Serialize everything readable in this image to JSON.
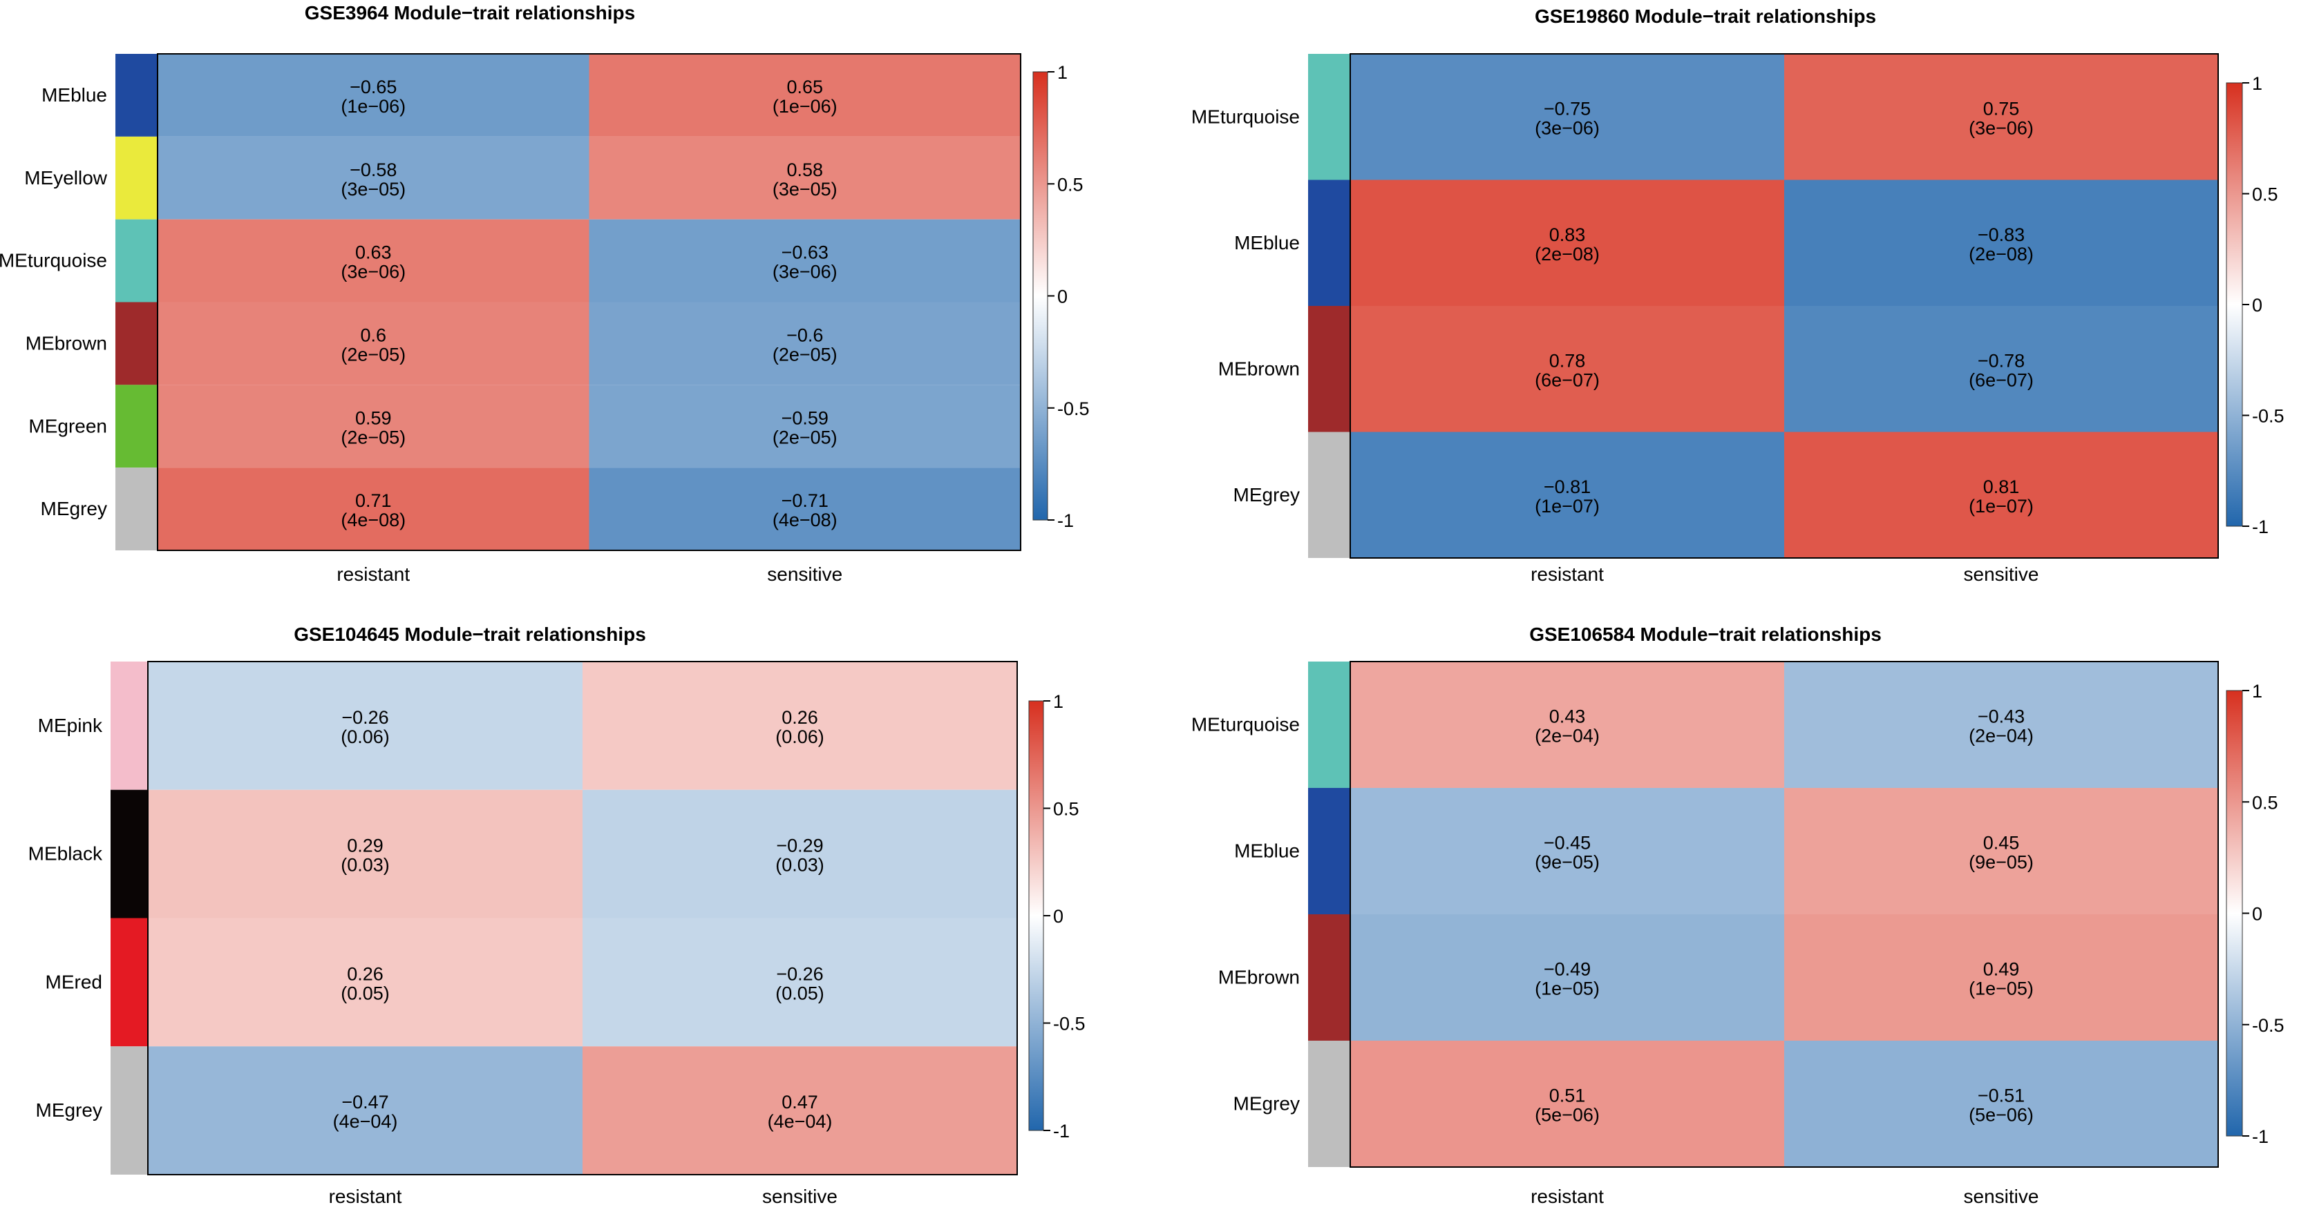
{
  "figure_label": "Module-trait relationship heatmaps for four GEO datasets",
  "colorscale": {
    "low": "#2166AC",
    "mid": "#FFFFFF",
    "high": "#D7301F",
    "ticks": [
      "1",
      "0.5",
      "0",
      "-0.5",
      "-1"
    ]
  },
  "chart_data": [
    {
      "type": "heatmap",
      "title": "GSE3964 Module−trait relationships",
      "columns": [
        "resistant",
        "sensitive"
      ],
      "rows": [
        "MEblue",
        "MEyellow",
        "MEturquoise",
        "MEbrown",
        "MEgreen",
        "MEgrey"
      ],
      "module_colors": [
        "#1F4AA0",
        "#EAEA3C",
        "#5EC2B6",
        "#9E2A2B",
        "#66BB33",
        "#BEBEBE"
      ],
      "values": [
        [
          -0.65,
          0.65
        ],
        [
          -0.58,
          0.58
        ],
        [
          0.63,
          -0.63
        ],
        [
          0.6,
          -0.6
        ],
        [
          0.59,
          -0.59
        ],
        [
          0.71,
          -0.71
        ]
      ],
      "labels": [
        [
          "−0.65",
          "0.65"
        ],
        [
          "−0.58",
          "0.58"
        ],
        [
          "0.63",
          "−0.63"
        ],
        [
          "0.6",
          "−0.6"
        ],
        [
          "0.59",
          "−0.59"
        ],
        [
          "0.71",
          "−0.71"
        ]
      ],
      "pvalues": [
        [
          "(1e−06)",
          "(1e−06)"
        ],
        [
          "(3e−05)",
          "(3e−05)"
        ],
        [
          "(3e−06)",
          "(3e−06)"
        ],
        [
          "(2e−05)",
          "(2e−05)"
        ],
        [
          "(2e−05)",
          "(2e−05)"
        ],
        [
          "(4e−08)",
          "(4e−08)"
        ]
      ],
      "value_range": [
        -1,
        1
      ]
    },
    {
      "type": "heatmap",
      "title": "GSE19860 Module−trait relationships",
      "columns": [
        "resistant",
        "sensitive"
      ],
      "rows": [
        "MEturquoise",
        "MEblue",
        "MEbrown",
        "MEgrey"
      ],
      "module_colors": [
        "#5EC2B6",
        "#1F4AA0",
        "#9E2A2B",
        "#BEBEBE"
      ],
      "values": [
        [
          -0.75,
          0.75
        ],
        [
          0.83,
          -0.83
        ],
        [
          0.78,
          -0.78
        ],
        [
          -0.81,
          0.81
        ]
      ],
      "labels": [
        [
          "−0.75",
          "0.75"
        ],
        [
          "0.83",
          "−0.83"
        ],
        [
          "0.78",
          "−0.78"
        ],
        [
          "−0.81",
          "0.81"
        ]
      ],
      "pvalues": [
        [
          "(3e−06)",
          "(3e−06)"
        ],
        [
          "(2e−08)",
          "(2e−08)"
        ],
        [
          "(6e−07)",
          "(6e−07)"
        ],
        [
          "(1e−07)",
          "(1e−07)"
        ]
      ],
      "value_range": [
        -1,
        1
      ]
    },
    {
      "type": "heatmap",
      "title": "GSE104645  Module−trait relationships",
      "columns": [
        "resistant",
        "sensitive"
      ],
      "rows": [
        "MEpink",
        "MEblack",
        "MEred",
        "MEgrey"
      ],
      "module_colors": [
        "#F4BDCB",
        "#0A0505",
        "#E41A23",
        "#BEBEBE"
      ],
      "values": [
        [
          -0.26,
          0.26
        ],
        [
          0.29,
          -0.29
        ],
        [
          0.26,
          -0.26
        ],
        [
          -0.47,
          0.47
        ]
      ],
      "labels": [
        [
          "−0.26",
          "0.26"
        ],
        [
          "0.29",
          "−0.29"
        ],
        [
          "0.26",
          "−0.26"
        ],
        [
          "−0.47",
          "0.47"
        ]
      ],
      "pvalues": [
        [
          "(0.06)",
          "(0.06)"
        ],
        [
          "(0.03)",
          "(0.03)"
        ],
        [
          "(0.05)",
          "(0.05)"
        ],
        [
          "(4e−04)",
          "(4e−04)"
        ]
      ],
      "value_range": [
        -1,
        1
      ]
    },
    {
      "type": "heatmap",
      "title": "GSE106584 Module−trait relationships",
      "columns": [
        "resistant",
        "sensitive"
      ],
      "rows": [
        "MEturquoise",
        "MEblue",
        "MEbrown",
        "MEgrey"
      ],
      "module_colors": [
        "#5EC2B6",
        "#1F4AA0",
        "#9E2A2B",
        "#BEBEBE"
      ],
      "values": [
        [
          0.43,
          -0.43
        ],
        [
          -0.45,
          0.45
        ],
        [
          -0.49,
          0.49
        ],
        [
          0.51,
          -0.51
        ]
      ],
      "labels": [
        [
          "0.43",
          "−0.43"
        ],
        [
          "−0.45",
          "0.45"
        ],
        [
          "−0.49",
          "0.49"
        ],
        [
          "0.51",
          "−0.51"
        ]
      ],
      "pvalues": [
        [
          "(2e−04)",
          "(2e−04)"
        ],
        [
          "(9e−05)",
          "(9e−05)"
        ],
        [
          "(1e−05)",
          "(1e−05)"
        ],
        [
          "(5e−06)",
          "(5e−06)"
        ]
      ],
      "value_range": [
        -1,
        1
      ]
    }
  ]
}
